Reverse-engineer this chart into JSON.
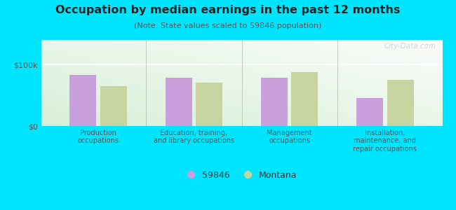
{
  "title": "Occupation by median earnings in the past 12 months",
  "subtitle": "(Note: State values scaled to 59846 population)",
  "categories": [
    "Production\noccupations",
    "Education, training,\nand library occupations",
    "Management\noccupations",
    "Installation,\nmaintenance, and\nrepair occupations"
  ],
  "values_59846": [
    83000,
    79000,
    78000,
    45000
  ],
  "values_montana": [
    65000,
    70000,
    88000,
    75000
  ],
  "color_59846": "#c9a0dc",
  "color_montana": "#c8d4a0",
  "background_outer": "#00e5ff",
  "ylim": [
    0,
    140000
  ],
  "yticks": [
    0,
    100000
  ],
  "ytick_labels": [
    "$0",
    "$100k"
  ],
  "legend_label_59846": "59846",
  "legend_label_montana": "Montana",
  "watermark": "City-Data.com"
}
